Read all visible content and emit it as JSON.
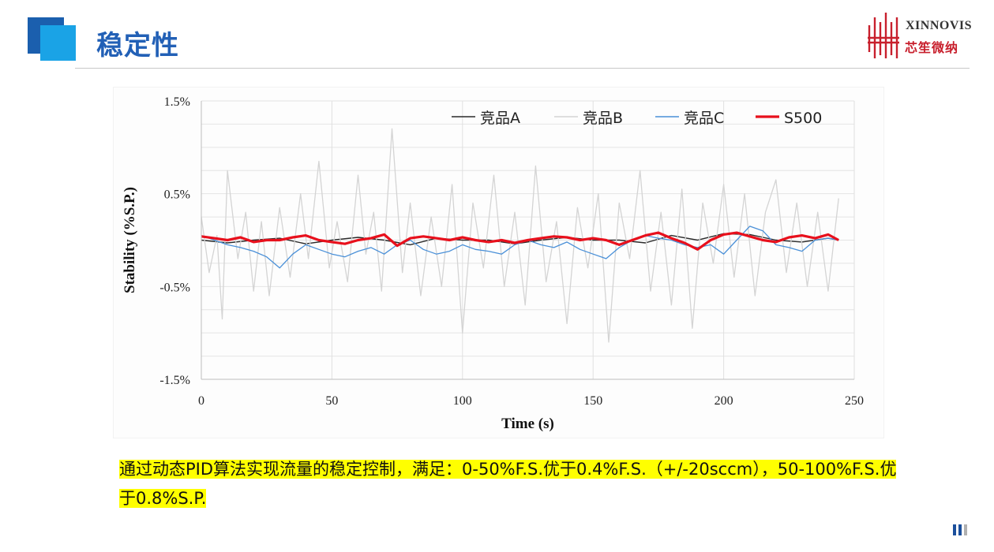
{
  "header": {
    "title": "稳定性"
  },
  "logo": {
    "en": "XINNOVIS",
    "cn": "芯笙微纳"
  },
  "chart_data": {
    "type": "line",
    "xlabel": "Time (s)",
    "ylabel": "Stability (%S.P.)",
    "xlim": [
      0,
      250
    ],
    "ylim": [
      -1.5,
      1.5
    ],
    "x_ticks": [
      "0",
      "50",
      "100",
      "150",
      "200",
      "250"
    ],
    "y_ticks": [
      "1.5%",
      "0.5%",
      "-0.5%",
      "-1.5%"
    ],
    "grid": true,
    "legend_position": "top-right",
    "series": [
      {
        "name": "竞品A",
        "color": "#2b2b2b",
        "x": [
          0,
          10,
          20,
          30,
          40,
          50,
          60,
          70,
          80,
          90,
          100,
          110,
          120,
          130,
          140,
          150,
          160,
          170,
          180,
          190,
          200,
          210,
          220,
          230,
          240,
          244
        ],
        "y": [
          0.0,
          -0.03,
          0.0,
          0.02,
          -0.04,
          0.0,
          0.03,
          0.0,
          -0.05,
          0.02,
          0.0,
          0.0,
          -0.04,
          0.0,
          0.03,
          0.0,
          0.0,
          -0.03,
          0.05,
          0.0,
          0.07,
          0.06,
          0.0,
          -0.02,
          0.02,
          0.0
        ]
      },
      {
        "name": "竞品B",
        "color": "#d4d4d4",
        "x": [
          0,
          3,
          6,
          8,
          10,
          14,
          17,
          20,
          23,
          26,
          30,
          34,
          38,
          41,
          45,
          49,
          52,
          56,
          60,
          63,
          66,
          69,
          73,
          77,
          80,
          84,
          88,
          92,
          96,
          100,
          104,
          108,
          112,
          116,
          120,
          124,
          128,
          132,
          136,
          140,
          144,
          148,
          152,
          156,
          160,
          164,
          168,
          172,
          176,
          180,
          184,
          188,
          192,
          196,
          200,
          204,
          208,
          212,
          216,
          220,
          224,
          228,
          232,
          236,
          240,
          244
        ],
        "y": [
          0.25,
          -0.35,
          0.05,
          -0.85,
          0.75,
          -0.2,
          0.3,
          -0.55,
          0.2,
          -0.6,
          0.35,
          -0.4,
          0.5,
          -0.2,
          0.85,
          -0.3,
          0.2,
          -0.45,
          0.7,
          -0.15,
          0.3,
          -0.55,
          1.2,
          -0.35,
          0.4,
          -0.6,
          0.25,
          -0.5,
          0.6,
          -1.0,
          0.4,
          -0.3,
          0.7,
          -0.5,
          0.3,
          -0.7,
          0.8,
          -0.45,
          0.2,
          -0.9,
          0.35,
          -0.3,
          0.5,
          -1.1,
          0.4,
          -0.2,
          0.75,
          -0.55,
          0.3,
          -0.7,
          0.55,
          -0.95,
          0.4,
          -0.25,
          0.6,
          -0.4,
          0.5,
          -0.6,
          0.3,
          0.65,
          -0.35,
          0.4,
          -0.5,
          0.3,
          -0.55,
          0.45
        ]
      },
      {
        "name": "竞品C",
        "color": "#4a90d8",
        "x": [
          0,
          5,
          10,
          15,
          20,
          25,
          30,
          35,
          40,
          45,
          50,
          55,
          60,
          65,
          70,
          75,
          80,
          85,
          90,
          95,
          100,
          105,
          110,
          115,
          120,
          125,
          130,
          135,
          140,
          145,
          150,
          155,
          160,
          165,
          170,
          175,
          180,
          185,
          190,
          195,
          200,
          205,
          210,
          215,
          220,
          225,
          230,
          235,
          240,
          244
        ],
        "y": [
          0.05,
          0.0,
          -0.05,
          -0.08,
          -0.12,
          -0.18,
          -0.3,
          -0.15,
          -0.05,
          -0.1,
          -0.15,
          -0.18,
          -0.12,
          -0.08,
          -0.15,
          -0.05,
          0.0,
          -0.1,
          -0.15,
          -0.12,
          -0.05,
          -0.1,
          -0.12,
          -0.15,
          -0.05,
          0.0,
          -0.05,
          -0.08,
          -0.02,
          -0.1,
          -0.15,
          -0.2,
          -0.08,
          0.0,
          0.05,
          0.02,
          0.0,
          -0.05,
          -0.08,
          -0.05,
          -0.15,
          0.0,
          0.15,
          0.1,
          -0.05,
          -0.08,
          -0.12,
          0.0,
          0.02,
          0.0
        ]
      },
      {
        "name": "S500",
        "color": "#e8101c",
        "x": [
          0,
          5,
          10,
          15,
          20,
          25,
          30,
          35,
          40,
          45,
          50,
          55,
          60,
          65,
          70,
          75,
          80,
          85,
          90,
          95,
          100,
          105,
          110,
          115,
          120,
          125,
          130,
          135,
          140,
          145,
          150,
          155,
          160,
          165,
          170,
          175,
          180,
          185,
          190,
          195,
          200,
          205,
          210,
          215,
          220,
          225,
          230,
          235,
          240,
          244
        ],
        "y": [
          0.04,
          0.02,
          0.0,
          0.03,
          -0.02,
          0.0,
          0.0,
          0.03,
          0.05,
          0.0,
          -0.02,
          -0.04,
          0.0,
          0.02,
          0.06,
          -0.06,
          0.02,
          0.04,
          0.02,
          0.0,
          0.03,
          0.0,
          -0.02,
          0.0,
          -0.03,
          0.0,
          0.02,
          0.04,
          0.03,
          0.0,
          0.02,
          0.0,
          -0.05,
          0.0,
          0.05,
          0.08,
          0.02,
          -0.03,
          -0.1,
          0.0,
          0.06,
          0.08,
          0.04,
          0.0,
          -0.02,
          0.03,
          0.05,
          0.02,
          0.06,
          0.0
        ]
      }
    ]
  },
  "caption": {
    "text": "通过动态PID算法实现流量的稳定控制，满足：0-50%F.S.优于0.4%F.S.（+/-20sccm），50-100%F.S.优于0.8%S.P."
  }
}
